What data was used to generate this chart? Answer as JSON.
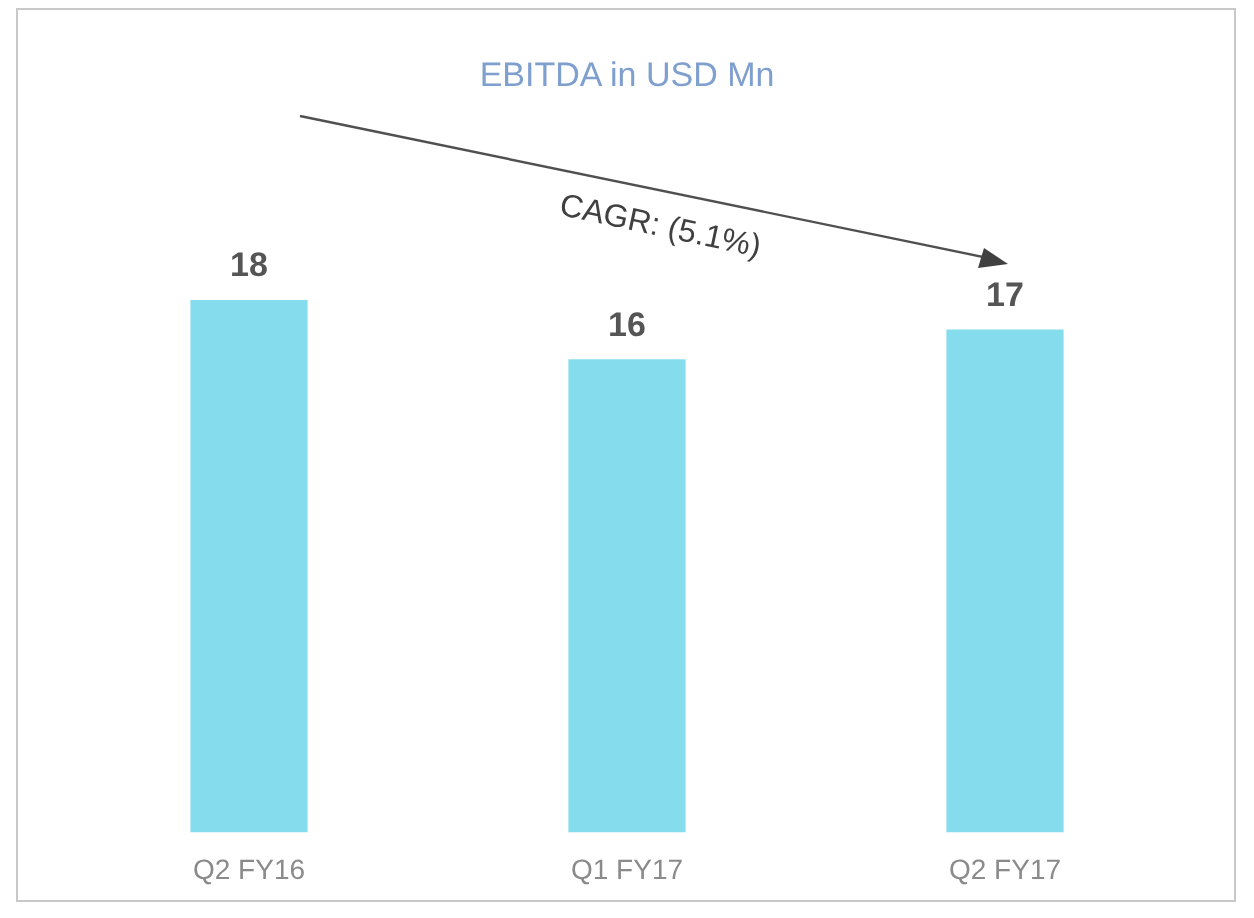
{
  "chart_data": {
    "type": "bar",
    "title": "EBITDA in USD Mn",
    "categories": [
      "Q2 FY16",
      "Q1 FY17",
      "Q2 FY17"
    ],
    "values": [
      18,
      16,
      17
    ],
    "color": "#84dcec",
    "tick_labels": "x",
    "grid": false,
    "legend": false,
    "data_labels": true,
    "annotations": [
      "CAGR: (5.1%)"
    ]
  }
}
